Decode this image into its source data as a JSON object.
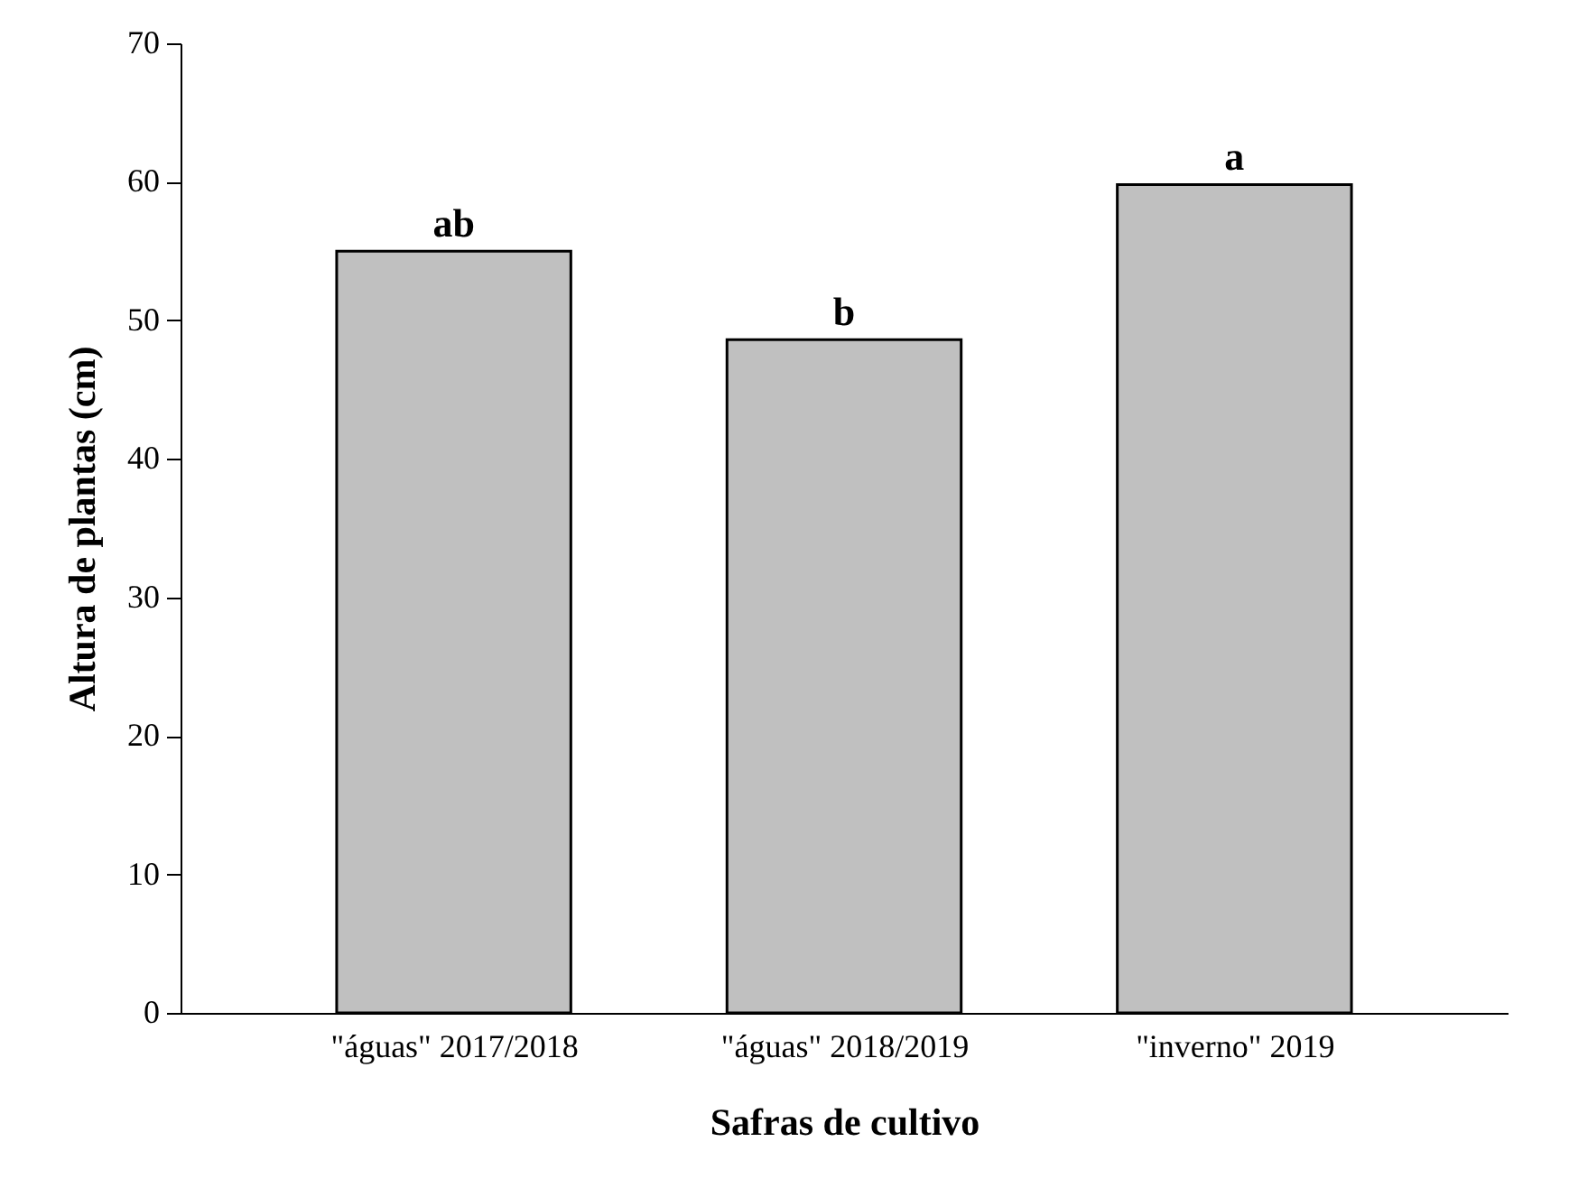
{
  "chart_data": {
    "type": "bar",
    "xlabel": "Safras de cultivo",
    "ylabel": "Altura de plantas (cm)",
    "categories": [
      "\"águas\" 2017/2018",
      "\"águas\" 2018/2019",
      "\"inverno\" 2019"
    ],
    "values": [
      55,
      48.6,
      59.8
    ],
    "color": "#c0c0c0",
    "ylim": [
      0,
      70
    ],
    "yticks": [
      0,
      10,
      20,
      30,
      40,
      50,
      60,
      70
    ],
    "grid": false,
    "annotations": [
      {
        "text": "ab",
        "x": "\"águas\" 2017/2018",
        "y": 55
      },
      {
        "text": "b",
        "x": "\"águas\" 2018/2019",
        "y": 48.6
      },
      {
        "text": "a",
        "x": "\"inverno\" 2019",
        "y": 59.8
      }
    ]
  }
}
